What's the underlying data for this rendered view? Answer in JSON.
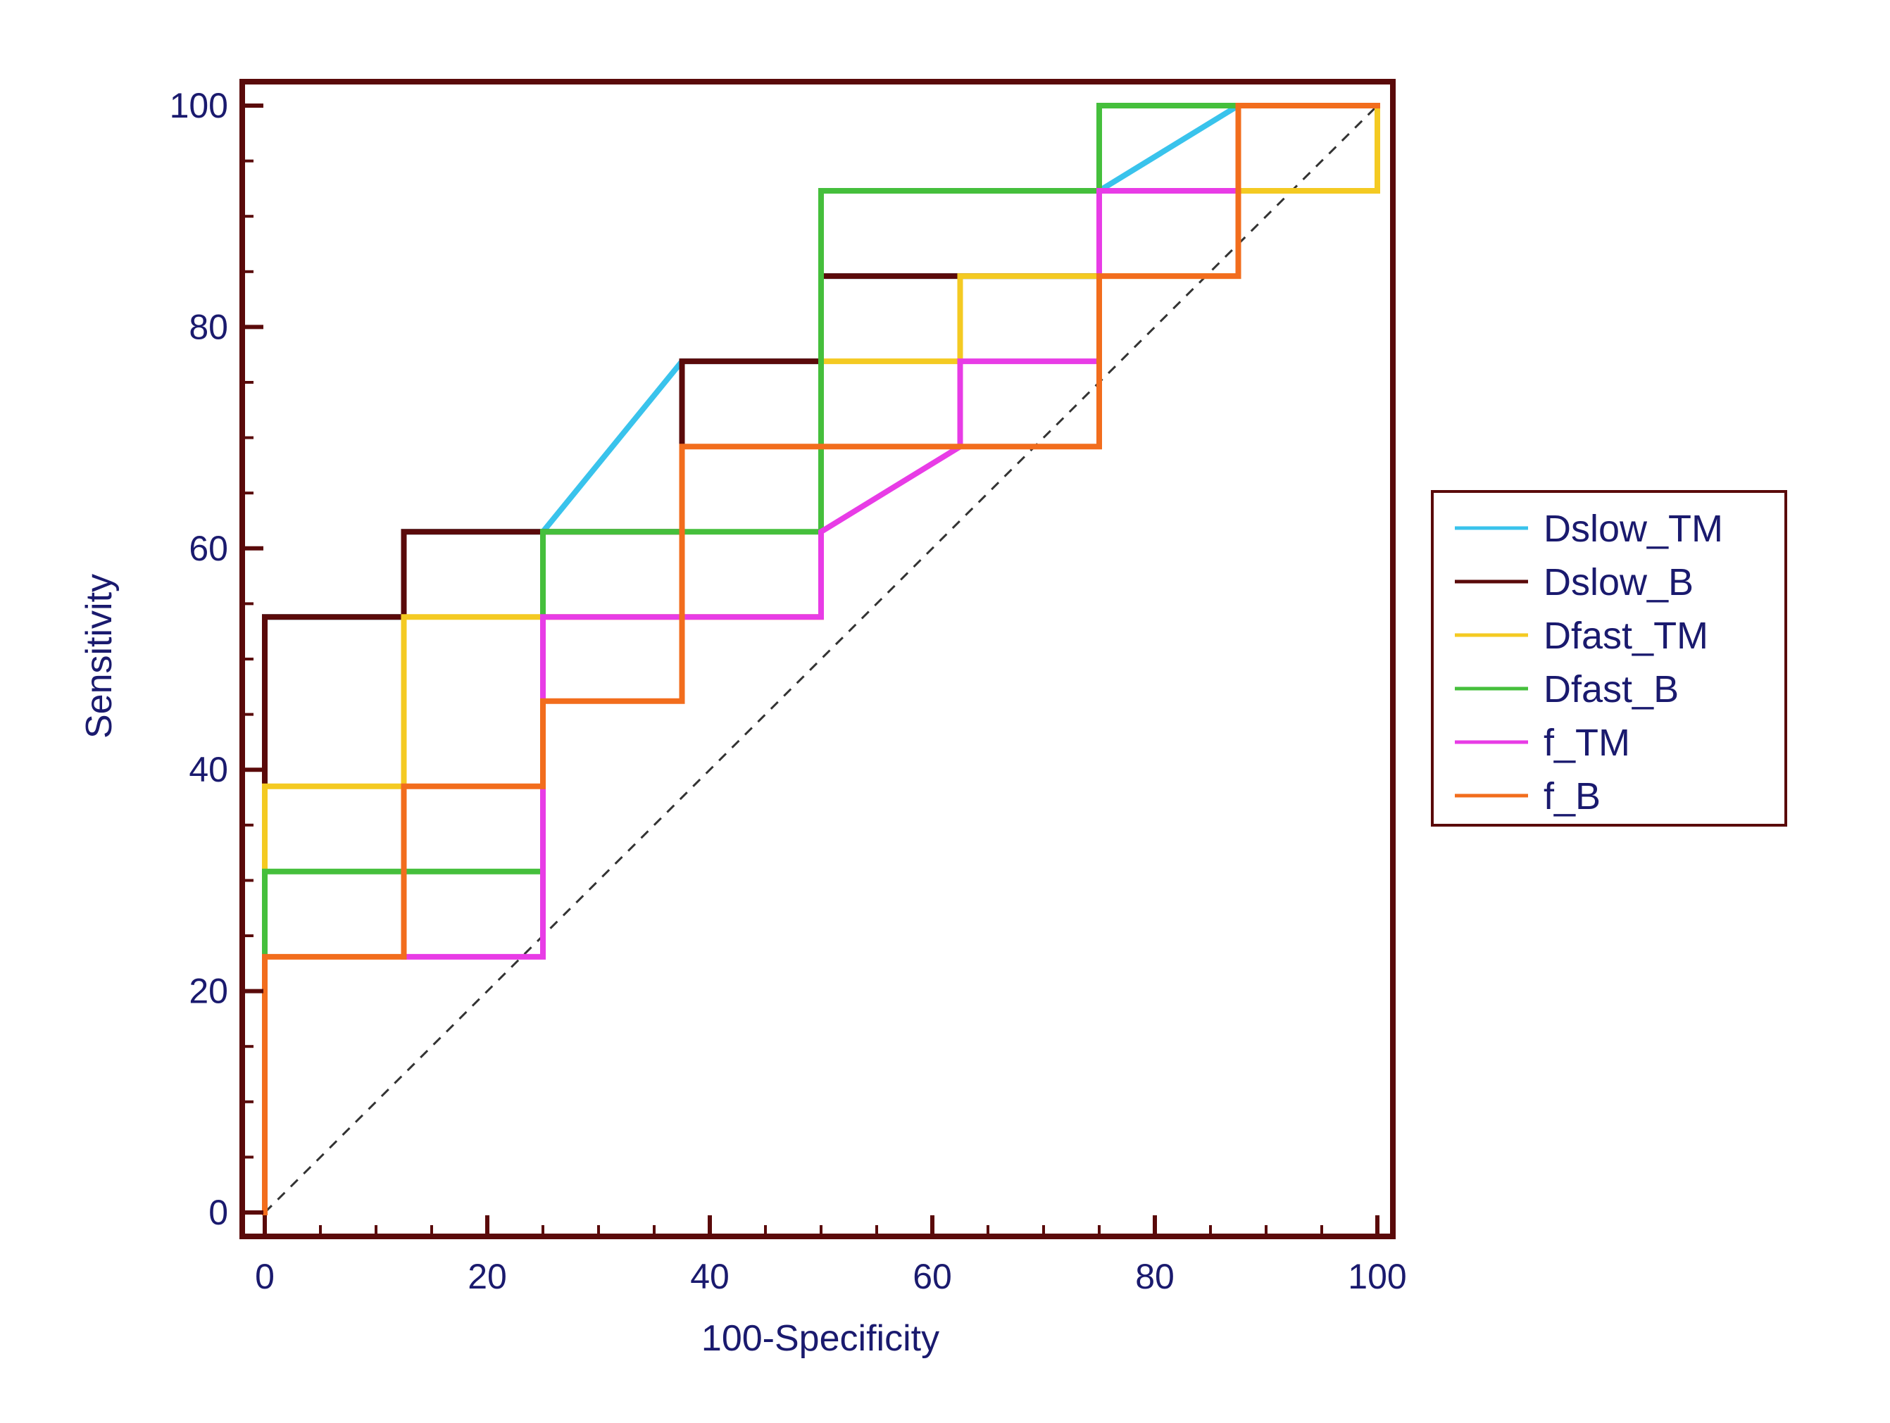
{
  "chart_data": {
    "type": "line",
    "title": "",
    "xlabel": "100-Specificity",
    "ylabel": "Sensitivity",
    "xlim": [
      0,
      100
    ],
    "ylim": [
      0,
      100
    ],
    "xticks": [
      0,
      20,
      40,
      60,
      80,
      100
    ],
    "yticks": [
      0,
      20,
      40,
      60,
      80,
      100
    ],
    "grid": false,
    "legend_position": "right",
    "reference_line": {
      "name": "chance-diagonal",
      "x": [
        0,
        100
      ],
      "y": [
        0,
        100
      ],
      "style": "dashed"
    },
    "series": [
      {
        "name": "Dslow_TM",
        "color": "#39c3ec",
        "x": [
          0,
          0,
          0,
          12.5,
          12.5,
          25,
          37.5,
          50,
          50,
          62.5,
          75,
          75,
          87.5,
          100
        ],
        "y": [
          0,
          38.5,
          53.8,
          53.8,
          61.5,
          61.5,
          76.9,
          76.9,
          84.6,
          84.6,
          84.6,
          92.3,
          100,
          100
        ]
      },
      {
        "name": "Dslow_B",
        "color": "#5a0a0a",
        "x": [
          0,
          0,
          12.5,
          12.5,
          25,
          25,
          37.5,
          37.5,
          50,
          50,
          62.5,
          62.5,
          75,
          75,
          87.5,
          87.5,
          100
        ],
        "y": [
          0,
          53.8,
          53.8,
          61.5,
          61.5,
          61.5,
          61.5,
          76.9,
          76.9,
          84.6,
          84.6,
          84.6,
          84.6,
          92.3,
          92.3,
          100,
          100
        ]
      },
      {
        "name": "Dfast_TM",
        "color": "#f4ca22",
        "x": [
          0,
          0,
          12.5,
          12.5,
          25,
          25,
          50,
          50,
          62.5,
          62.5,
          75,
          75,
          87.5,
          87.5,
          100,
          100
        ],
        "y": [
          0,
          38.5,
          38.5,
          53.8,
          53.8,
          53.8,
          53.8,
          76.9,
          76.9,
          84.6,
          84.6,
          84.6,
          84.6,
          92.3,
          92.3,
          100
        ]
      },
      {
        "name": "Dfast_B",
        "color": "#45bf3c",
        "x": [
          0,
          0,
          25,
          25,
          50,
          50,
          75,
          75,
          87.5,
          100
        ],
        "y": [
          0,
          30.8,
          30.8,
          61.5,
          61.5,
          92.3,
          92.3,
          100,
          100,
          100
        ]
      },
      {
        "name": "f_TM",
        "color": "#e83ce6",
        "x": [
          12.5,
          25,
          25,
          50,
          50,
          62.5,
          62.5,
          75,
          75,
          87.5
        ],
        "y": [
          23.1,
          23.1,
          53.8,
          53.8,
          61.5,
          69.2,
          76.9,
          76.9,
          92.3,
          92.3
        ]
      },
      {
        "name": "f_B",
        "color": "#f26d1d",
        "x": [
          0,
          0,
          12.5,
          12.5,
          25,
          25,
          37.5,
          37.5,
          75,
          75,
          87.5,
          87.5,
          100
        ],
        "y": [
          0,
          23.1,
          23.1,
          38.5,
          38.5,
          46.2,
          46.2,
          69.2,
          69.2,
          84.6,
          84.6,
          100,
          100
        ]
      }
    ],
    "legend": [
      "Dslow_TM",
      "Dslow_B",
      "Dfast_TM",
      "Dfast_B",
      "f_TM",
      "f_B"
    ],
    "colors": {
      "axis_frame": "#5a0a0a",
      "tick_label": "#1a1a6e",
      "axis_label": "#1a1a6e",
      "legend_frame": "#5a0a0a",
      "legend_text": "#1a1a6e",
      "diagonal": "#333333"
    }
  }
}
